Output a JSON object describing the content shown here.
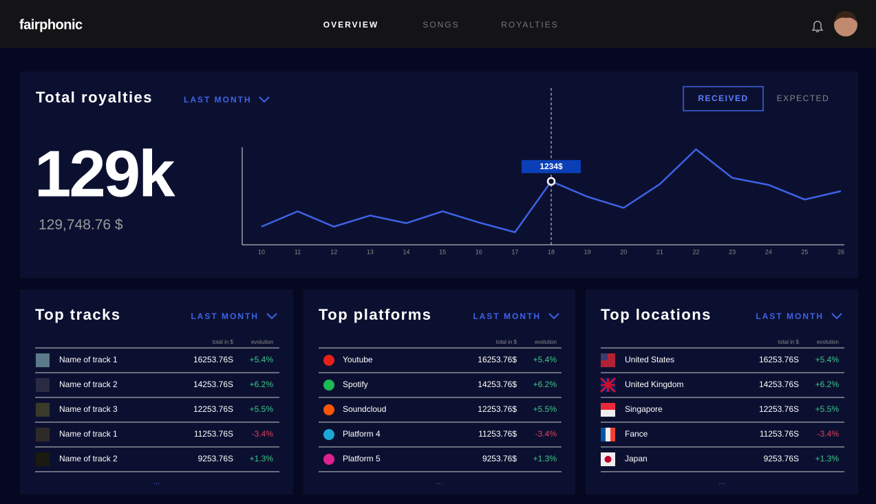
{
  "header": {
    "logo": "fairphonic",
    "nav": [
      "OVERVIEW",
      "SONGS",
      "ROYALTIES"
    ]
  },
  "royalties": {
    "title": "Total royalties",
    "period": "LAST MONTH",
    "toggle": [
      "RECEIVED",
      "EXPECTED"
    ],
    "big": "129k",
    "exact": "129,748.76 $"
  },
  "chart_data": {
    "type": "line",
    "categories": [
      "10",
      "11",
      "12",
      "13",
      "14",
      "15",
      "16",
      "17",
      "18",
      "19",
      "20",
      "21",
      "22",
      "23",
      "24",
      "25",
      "26"
    ],
    "values": [
      353,
      651,
      353,
      570,
      420,
      651,
      434,
      244,
      1234,
      936,
      719,
      1180,
      1858,
      1302,
      1166,
      881,
      1044
    ],
    "value_labels": [
      null,
      null,
      null,
      null,
      null,
      null,
      null,
      null,
      "1234$",
      null,
      null,
      null,
      null,
      null,
      null,
      null,
      null
    ],
    "color": "#3d63e6",
    "ylim": [
      0,
      1900
    ]
  },
  "panels": [
    {
      "title": "Top tracks",
      "period": "LAST MONTH",
      "columns": [
        "total in $",
        "evolution"
      ],
      "rows": [
        [
          "Name of track 1",
          "16253.76S",
          "+5.4%"
        ],
        [
          "Name of track 2",
          "14253.76S",
          "+6.2%"
        ],
        [
          "Name of track 3",
          "12253.76S",
          "+5.5%"
        ],
        [
          "Name of track 1",
          "11253.76S",
          "-3.4%"
        ],
        [
          "Name of track 2",
          "9253.76S",
          "+1.3%"
        ]
      ],
      "more": "..."
    },
    {
      "title": "Top platforms",
      "period": "LAST MONTH",
      "columns": [
        "total in $",
        "evolution"
      ],
      "rows": [
        [
          "Youtube",
          "16253.76$",
          "+5.4%"
        ],
        [
          "Spotify",
          "14253.76$",
          "+6.2%"
        ],
        [
          "Soundcloud",
          "12253.76$",
          "+5.5%"
        ],
        [
          "Platform 4",
          "11253.76$",
          "-3.4%"
        ],
        [
          "Platform 5",
          "9253.76$",
          "+1.3%"
        ]
      ],
      "more": "..."
    },
    {
      "title": "Top locations",
      "period": "LAST MONTH",
      "columns": [
        "total in $",
        "evolution"
      ],
      "rows": [
        [
          "United States",
          "16253.76S",
          "+5.4%"
        ],
        [
          "United Kingdom",
          "14253.76S",
          "+6.2%"
        ],
        [
          "Singapore",
          "12253.76S",
          "+5.5%"
        ],
        [
          "Fance",
          "11253.76S",
          "-3.4%"
        ],
        [
          "Japan",
          "9253.76S",
          "+1.3%"
        ]
      ],
      "more": "..."
    }
  ]
}
